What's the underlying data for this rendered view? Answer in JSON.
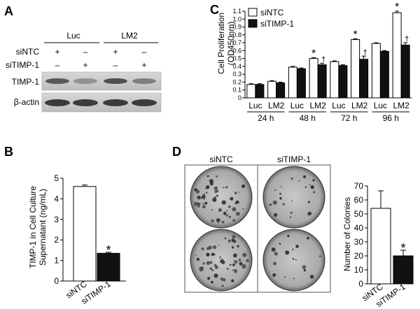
{
  "panel_letters": [
    "A",
    "B",
    "C",
    "D"
  ],
  "panel_a": {
    "group_labels": [
      "Luc",
      "LM2"
    ],
    "row_labels": [
      "siNTC",
      "siTIMP-1"
    ],
    "sintc_marks": [
      "+",
      "–",
      "+",
      "–"
    ],
    "sitimp_marks": [
      "–",
      "+",
      "–",
      "+"
    ],
    "blot_labels": [
      "TIMP-1",
      "β-actin"
    ],
    "timp1_intensity": [
      0.75,
      0.45,
      0.8,
      0.55
    ],
    "actin_intensity": [
      0.9,
      0.9,
      0.9,
      0.9
    ]
  },
  "panel_d": {
    "plate_labels": [
      "siNTC",
      "siTIMP-1"
    ]
  },
  "chart_data": [
    {
      "type": "bar",
      "panel": "C",
      "ylabel": "Cell Proliferation (OD450nm)",
      "ylim": [
        0,
        1.1
      ],
      "yticks": [
        "0",
        "0.1",
        "0.2",
        "0.3",
        "0.4",
        "0.5",
        "0.6",
        "0.7",
        "0.8",
        "0.9",
        "1.0",
        "1.1"
      ],
      "categories": [
        "Luc",
        "LM2",
        "Luc",
        "LM2",
        "Luc",
        "LM2",
        "Luc",
        "LM2"
      ],
      "groups": [
        "24 h",
        "48 h",
        "72 h",
        "96 h"
      ],
      "legend": [
        "siNTC",
        "siTIMP-1"
      ],
      "legend_position": "top-left",
      "series": [
        {
          "name": "siNTC",
          "color": "#ffffff",
          "values": [
            0.17,
            0.21,
            0.39,
            0.5,
            0.46,
            0.74,
            0.69,
            1.08
          ],
          "errors": [
            0.01,
            0.01,
            0.01,
            0.01,
            0.01,
            0.01,
            0.01,
            0.02
          ]
        },
        {
          "name": "siTIMP-1",
          "color": "#111111",
          "values": [
            0.17,
            0.19,
            0.37,
            0.42,
            0.41,
            0.49,
            0.59,
            0.67
          ],
          "errors": [
            0.01,
            0.01,
            0.01,
            0.02,
            0.01,
            0.04,
            0.01,
            0.03
          ]
        }
      ],
      "annotations": [
        {
          "category_index": 3,
          "series": "siNTC",
          "text": "*"
        },
        {
          "category_index": 3,
          "series": "siTIMP-1",
          "text": "†"
        },
        {
          "category_index": 5,
          "series": "siNTC",
          "text": "*"
        },
        {
          "category_index": 5,
          "series": "siTIMP-1",
          "text": "†"
        },
        {
          "category_index": 7,
          "series": "siNTC",
          "text": "*"
        },
        {
          "category_index": 7,
          "series": "siTIMP-1",
          "text": "†"
        }
      ]
    },
    {
      "type": "bar",
      "panel": "B",
      "ylabel": "TIMP-1 in Cell Culture Supernatant (ng/mL)",
      "ylim": [
        0,
        5
      ],
      "yticks": [
        "0",
        "1",
        "2",
        "3",
        "4",
        "5"
      ],
      "categories": [
        "siNTC",
        "siTIMP-1"
      ],
      "values": [
        4.6,
        1.35
      ],
      "errors": [
        0.07,
        0.05
      ],
      "colors": [
        "#ffffff",
        "#111111"
      ],
      "annotations": [
        {
          "category_index": 1,
          "text": "*"
        }
      ]
    },
    {
      "type": "bar",
      "panel": "D",
      "ylabel": "Number of Colonies",
      "ylim": [
        0,
        70
      ],
      "yticks": [
        "0",
        "10",
        "20",
        "30",
        "40",
        "50",
        "60",
        "70"
      ],
      "categories": [
        "siNTC",
        "siTIMP-1"
      ],
      "values": [
        54,
        20
      ],
      "errors": [
        12.5,
        4
      ],
      "colors": [
        "#ffffff",
        "#111111"
      ],
      "annotations": [
        {
          "category_index": 1,
          "text": "*"
        }
      ]
    }
  ]
}
